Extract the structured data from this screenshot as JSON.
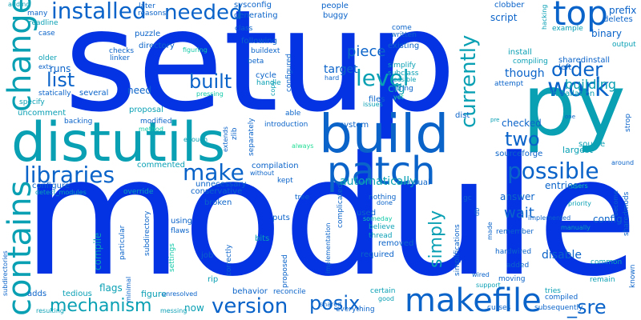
{
  "palette": {
    "blue": "#0433e3",
    "mid_blue": "#0a63c9",
    "teal": "#0aa0b4",
    "light_teal": "#12c9a8",
    "mint": "#22dd96"
  },
  "words": [
    {
      "text": "setup",
      "color": "blue"
    },
    {
      "text": "module",
      "color": "blue"
    },
    {
      "text": "distutils",
      "color": "teal"
    },
    {
      "text": "py",
      "color": "teal"
    },
    {
      "text": "build",
      "color": "mid_blue"
    },
    {
      "text": "patch",
      "color": "mid_blue"
    },
    {
      "text": "makefile",
      "color": "mid_blue"
    },
    {
      "text": "change",
      "color": "teal"
    },
    {
      "text": "contains",
      "color": "teal"
    },
    {
      "text": "top",
      "color": "mid_blue"
    },
    {
      "text": "work",
      "color": "mid_blue"
    },
    {
      "text": "installed",
      "color": "mid_blue"
    },
    {
      "text": "needed",
      "color": "mid_blue"
    },
    {
      "text": "level",
      "color": "teal"
    },
    {
      "text": "order",
      "color": "mid_blue"
    },
    {
      "text": "currently",
      "color": "teal"
    },
    {
      "text": "two",
      "color": "mid_blue"
    },
    {
      "text": "possible",
      "color": "mid_blue"
    },
    {
      "text": "make",
      "color": "mid_blue"
    },
    {
      "text": "libraries",
      "color": "mid_blue"
    },
    {
      "text": "list",
      "color": "mid_blue"
    },
    {
      "text": "built",
      "color": "mid_blue"
    },
    {
      "text": "version",
      "color": "mid_blue"
    },
    {
      "text": "mechanism",
      "color": "teal"
    },
    {
      "text": "posix",
      "color": "mid_blue"
    },
    {
      "text": "_sre",
      "color": "mid_blue"
    },
    {
      "text": "simply",
      "color": "teal"
    },
    {
      "text": "wait",
      "color": "mid_blue"
    },
    {
      "text": "piece",
      "color": "mid_blue"
    },
    {
      "text": "building",
      "color": "teal"
    },
    {
      "text": "though",
      "color": "mid_blue"
    },
    {
      "text": "target",
      "color": "mid_blue"
    },
    {
      "text": "cfg",
      "color": "teal"
    },
    {
      "text": "automatically",
      "color": "teal"
    },
    {
      "text": "answer",
      "color": "mid_blue"
    },
    {
      "text": "entries",
      "color": "mid_blue"
    },
    {
      "text": "disable",
      "color": "mid_blue"
    },
    {
      "text": "checked",
      "color": "mid_blue"
    },
    {
      "text": "need",
      "color": "mid_blue"
    },
    {
      "text": "runs",
      "color": "mid_blue"
    },
    {
      "text": "script",
      "color": "mid_blue"
    },
    {
      "text": "binary",
      "color": "mid_blue"
    },
    {
      "text": "config",
      "color": "mid_blue"
    },
    {
      "text": "compile",
      "color": "teal"
    },
    {
      "text": "largest",
      "color": "teal"
    },
    {
      "text": "source",
      "color": "teal"
    },
    {
      "text": "sourceforge",
      "color": "mid_blue"
    },
    {
      "text": "installation",
      "color": "teal"
    },
    {
      "text": "install",
      "color": "teal"
    },
    {
      "text": "compiling",
      "color": "teal"
    },
    {
      "text": "sharedinstall",
      "color": "mid_blue"
    },
    {
      "text": "left",
      "color": "mid_blue"
    },
    {
      "text": "prefix",
      "color": "mid_blue"
    },
    {
      "text": "deletes",
      "color": "mid_blue"
    },
    {
      "text": "clobber",
      "color": "mid_blue"
    },
    {
      "text": "example",
      "color": "teal"
    },
    {
      "text": "output",
      "color": "teal"
    },
    {
      "text": "hacking",
      "color": "teal"
    },
    {
      "text": "bits",
      "color": "teal"
    },
    {
      "text": "rip",
      "color": "teal"
    },
    {
      "text": "flags",
      "color": "teal"
    },
    {
      "text": "job",
      "color": "mid_blue"
    },
    {
      "text": "now",
      "color": "teal"
    },
    {
      "text": "figure",
      "color": "teal"
    },
    {
      "text": "tedious",
      "color": "teal"
    },
    {
      "text": "adds",
      "color": "mid_blue"
    },
    {
      "text": "behavior",
      "color": "mid_blue"
    },
    {
      "text": "broken",
      "color": "mid_blue"
    },
    {
      "text": "using",
      "color": "mid_blue"
    },
    {
      "text": "puts",
      "color": "mid_blue"
    },
    {
      "text": "used",
      "color": "mid_blue"
    },
    {
      "text": "removed",
      "color": "mid_blue"
    },
    {
      "text": "required",
      "color": "mid_blue"
    },
    {
      "text": "believe",
      "color": "teal"
    },
    {
      "text": "thread",
      "color": "teal"
    },
    {
      "text": "nothing",
      "color": "mid_blue"
    },
    {
      "text": "tree",
      "color": "mid_blue"
    },
    {
      "text": "kept",
      "color": "mid_blue"
    },
    {
      "text": "usual",
      "color": "mid_blue"
    },
    {
      "text": "dist",
      "color": "mid_blue"
    },
    {
      "text": "files",
      "color": "mid_blue"
    },
    {
      "text": "system",
      "color": "mid_blue"
    },
    {
      "text": "string",
      "color": "mid_blue"
    },
    {
      "text": "subclass",
      "color": "teal"
    },
    {
      "text": "simplify",
      "color": "teal"
    },
    {
      "text": "existing",
      "color": "mid_blue"
    },
    {
      "text": "written",
      "color": "mid_blue"
    },
    {
      "text": "come",
      "color": "mid_blue"
    },
    {
      "text": "buggy",
      "color": "mid_blue"
    },
    {
      "text": "people",
      "color": "mid_blue"
    },
    {
      "text": "sysconfig",
      "color": "mid_blue"
    },
    {
      "text": "generating",
      "color": "mid_blue"
    },
    {
      "text": "class",
      "color": "mid_blue"
    },
    {
      "text": "following",
      "color": "mid_blue"
    },
    {
      "text": "buildext",
      "color": "mid_blue"
    },
    {
      "text": "beta",
      "color": "mid_blue"
    },
    {
      "text": "cycle",
      "color": "mid_blue"
    },
    {
      "text": "handle",
      "color": "teal"
    },
    {
      "text": "configured",
      "color": "mid_blue"
    },
    {
      "text": "later",
      "color": "mid_blue"
    },
    {
      "text": "reasons",
      "color": "mid_blue"
    },
    {
      "text": "puzzle",
      "color": "mid_blue"
    },
    {
      "text": "directory",
      "color": "mid_blue"
    },
    {
      "text": "figuring",
      "color": "light_teal"
    },
    {
      "text": "checks",
      "color": "mid_blue"
    },
    {
      "text": "linker",
      "color": "mid_blue"
    },
    {
      "text": "older",
      "color": "teal"
    },
    {
      "text": "exts",
      "color": "mid_blue"
    },
    {
      "text": "readline",
      "color": "teal"
    },
    {
      "text": "many",
      "color": "mid_blue"
    },
    {
      "text": "case",
      "color": "mid_blue"
    },
    {
      "text": "adding",
      "color": "teal"
    },
    {
      "text": "statically",
      "color": "mid_blue"
    },
    {
      "text": "specify",
      "color": "teal"
    },
    {
      "text": "uncomment",
      "color": "teal"
    },
    {
      "text": "several",
      "color": "mid_blue"
    },
    {
      "text": "proposal",
      "color": "teal"
    },
    {
      "text": "modified",
      "color": "mid_blue"
    },
    {
      "text": "backing",
      "color": "mid_blue"
    },
    {
      "text": "method",
      "color": "light_teal"
    },
    {
      "text": "pressing",
      "color": "light_teal"
    },
    {
      "text": "copy",
      "color": "teal"
    },
    {
      "text": "able",
      "color": "mid_blue"
    },
    {
      "text": "introduction",
      "color": "mid_blue"
    },
    {
      "text": "enough",
      "color": "teal"
    },
    {
      "text": "extends",
      "color": "mid_blue"
    },
    {
      "text": "zlib",
      "color": "mid_blue"
    },
    {
      "text": "separately",
      "color": "mid_blue"
    },
    {
      "text": "always",
      "color": "mint"
    },
    {
      "text": "configure",
      "color": "mid_blue"
    },
    {
      "text": "commented",
      "color": "teal"
    },
    {
      "text": "compilation",
      "color": "mid_blue"
    },
    {
      "text": "without",
      "color": "mid_blue"
    },
    {
      "text": "unnecessary",
      "color": "mid_blue"
    },
    {
      "text": "conservative",
      "color": "mid_blue"
    },
    {
      "text": "override",
      "color": "teal"
    },
    {
      "text": "detect_modules",
      "color": "teal"
    },
    {
      "text": "particular",
      "color": "mid_blue"
    },
    {
      "text": "subdirectory",
      "color": "mid_blue"
    },
    {
      "text": "subdirectories",
      "color": "mid_blue"
    },
    {
      "text": "flaws",
      "color": "mid_blue"
    },
    {
      "text": "settings",
      "color": "light_teal"
    },
    {
      "text": "minimal",
      "color": "mid_blue"
    },
    {
      "text": "correctly",
      "color": "mid_blue"
    },
    {
      "text": "proposed",
      "color": "mid_blue"
    },
    {
      "text": "implementation",
      "color": "mid_blue"
    },
    {
      "text": "simplifications",
      "color": "mid_blue"
    },
    {
      "text": "complicated",
      "color": "mid_blue"
    },
    {
      "text": "feasible",
      "color": "teal"
    },
    {
      "text": "hard",
      "color": "mid_blue"
    },
    {
      "text": "issues",
      "color": "teal"
    },
    {
      "text": "yet",
      "color": "mint"
    },
    {
      "text": "done",
      "color": "mid_blue"
    },
    {
      "text": "someday",
      "color": "light_teal"
    },
    {
      "text": "made",
      "color": "mid_blue"
    },
    {
      "text": "db",
      "color": "mid_blue"
    },
    {
      "text": "gc",
      "color": "mid_blue"
    },
    {
      "text": "remember",
      "color": "mid_blue"
    },
    {
      "text": "hardwired",
      "color": "mid_blue"
    },
    {
      "text": "added",
      "color": "mid_blue"
    },
    {
      "text": "moving",
      "color": "mid_blue"
    },
    {
      "text": "tries",
      "color": "teal"
    },
    {
      "text": "compiled",
      "color": "mid_blue"
    },
    {
      "text": "subsequently",
      "color": "mid_blue"
    },
    {
      "text": "curses",
      "color": "mid_blue"
    },
    {
      "text": "good",
      "color": "teal"
    },
    {
      "text": "certain",
      "color": "teal"
    },
    {
      "text": "everything",
      "color": "mid_blue"
    },
    {
      "text": "support",
      "color": "teal"
    },
    {
      "text": "wired",
      "color": "mid_blue"
    },
    {
      "text": "remain",
      "color": "teal"
    },
    {
      "text": "common",
      "color": "teal"
    },
    {
      "text": "users",
      "color": "light_teal"
    },
    {
      "text": "priority",
      "color": "teal"
    },
    {
      "text": "implemented",
      "color": "mid_blue"
    },
    {
      "text": "manually",
      "color": "teal"
    },
    {
      "text": "become",
      "color": "mid_blue"
    },
    {
      "text": "sharedmods",
      "color": "mid_blue"
    },
    {
      "text": "known",
      "color": "mid_blue"
    },
    {
      "text": "around",
      "color": "mid_blue"
    },
    {
      "text": "strop",
      "color": "mid_blue"
    },
    {
      "text": "one",
      "color": "mid_blue"
    },
    {
      "text": "pre",
      "color": "teal"
    },
    {
      "text": "attempt",
      "color": "mid_blue"
    },
    {
      "text": "resulting",
      "color": "teal"
    },
    {
      "text": "messing",
      "color": "teal"
    },
    {
      "text": "unresolved",
      "color": "mid_blue"
    },
    {
      "text": "reconcile",
      "color": "mid_blue"
    },
    {
      "text": "shared",
      "color": "mid_blue"
    }
  ]
}
